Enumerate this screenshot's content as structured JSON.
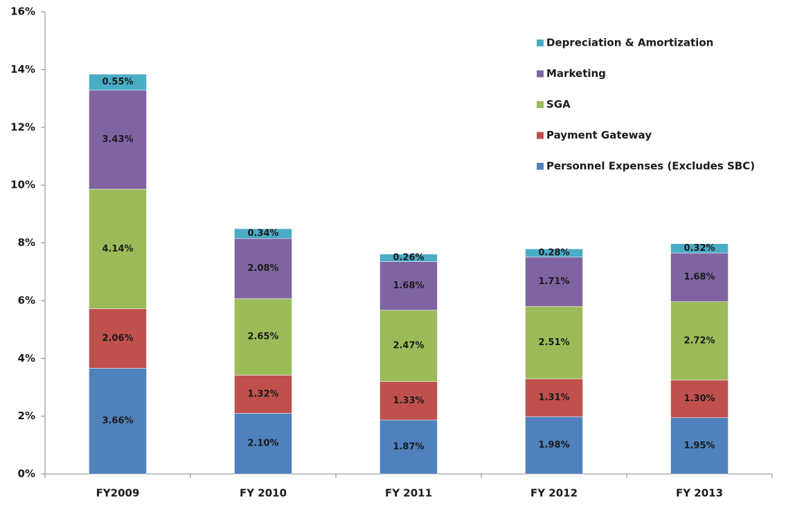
{
  "chart_data": {
    "type": "stacked_bar",
    "categories": [
      "FY2009",
      "FY 2010",
      "FY 2011",
      "FY 2012",
      "FY 2013"
    ],
    "series": [
      {
        "name": "Personnel Expenses (Excludes SBC)",
        "color": "#4f81bd",
        "values": [
          3.66,
          2.1,
          1.87,
          1.98,
          1.95
        ],
        "value_labels": [
          "3.66%",
          "2.10%",
          "1.87%",
          "1.98%",
          "1.95%"
        ]
      },
      {
        "name": "Payment Gateway",
        "color": "#c0504d",
        "values": [
          2.06,
          1.32,
          1.33,
          1.31,
          1.3
        ],
        "value_labels": [
          "2.06%",
          "1.32%",
          "1.33%",
          "1.31%",
          "1.30%"
        ]
      },
      {
        "name": "SGA",
        "color": "#9bbb59",
        "values": [
          4.14,
          2.65,
          2.47,
          2.51,
          2.72
        ],
        "value_labels": [
          "4.14%",
          "2.65%",
          "2.47%",
          "2.51%",
          "2.72%"
        ]
      },
      {
        "name": "Marketing",
        "color": "#8064a2",
        "values": [
          3.43,
          2.08,
          1.68,
          1.71,
          1.68
        ],
        "value_labels": [
          "3.43%",
          "2.08%",
          "1.68%",
          "1.71%",
          "1.68%"
        ]
      },
      {
        "name": "Depreciation & Amortization",
        "color": "#4bacc6",
        "values": [
          0.55,
          0.34,
          0.26,
          0.28,
          0.32
        ],
        "value_labels": [
          "0.55%",
          "0.34%",
          "0.26%",
          "0.28%",
          "0.32%"
        ]
      }
    ],
    "ylim": [
      0,
      16
    ],
    "yticks": [
      {
        "value": 0,
        "label": "0%"
      },
      {
        "value": 2,
        "label": "2%"
      },
      {
        "value": 4,
        "label": "4%"
      },
      {
        "value": 6,
        "label": "6%"
      },
      {
        "value": 8,
        "label": "8%"
      },
      {
        "value": 10,
        "label": "10%"
      },
      {
        "value": 12,
        "label": "12%"
      },
      {
        "value": 14,
        "label": "14%"
      },
      {
        "value": 16,
        "label": "16%"
      }
    ],
    "legend_position": "upper right",
    "grid": false
  }
}
